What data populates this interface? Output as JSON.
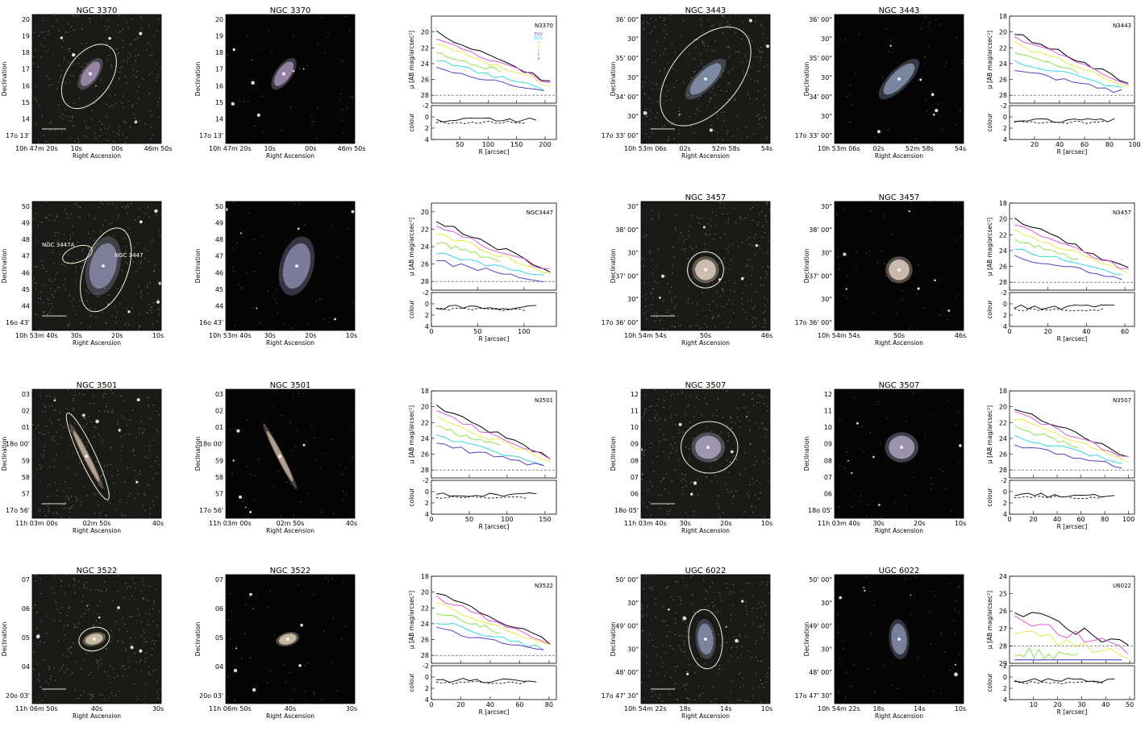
{
  "rows": [
    {
      "galaxies": [
        {
          "name": "NGC 3370",
          "ra_ticks": [
            "10h 47m 20s",
            "10s",
            "00s",
            "46m 50s"
          ],
          "dec_ticks": [
            "20",
            "19",
            "18",
            "17",
            "16",
            "15",
            "14",
            "17o 13'"
          ],
          "ellipse_labels": [],
          "profile": {
            "label": "N3370",
            "legend": [
              "FUV",
              "NUV",
              "u",
              "g",
              "r",
              "i",
              "z"
            ],
            "ylim": [
              18,
              29
            ],
            "yticks": [
              "20",
              "22",
              "24",
              "26",
              "28"
            ],
            "xticks": [
              "50",
              "100",
              "150",
              "200"
            ],
            "xmax": 220,
            "cticks": [
              "-2",
              "0",
              "2",
              "4"
            ]
          }
        },
        {
          "name": "NGC 3443",
          "ra_ticks": [
            "10h 53m 06s",
            "02s",
            "52m 58s",
            "54s"
          ],
          "dec_ticks": [
            "36' 00\"",
            "30\"",
            "35' 00\"",
            "30\"",
            "34' 00\"",
            "30\"",
            "17o 33' 00\""
          ],
          "ellipse_labels": [],
          "profile": {
            "label": "N3443",
            "legend": [],
            "ylim": [
              18,
              29
            ],
            "yticks": [
              "18",
              "20",
              "22",
              "24",
              "26",
              "28"
            ],
            "xticks": [
              "20",
              "40",
              "60",
              "80",
              "100"
            ],
            "xmax": 100,
            "cticks": [
              "-2",
              "0",
              "2",
              "4"
            ]
          }
        }
      ]
    },
    {
      "galaxies": [
        {
          "name": "",
          "ra_ticks": [
            "10h 53m 40s",
            "30s",
            "20s",
            "10s"
          ],
          "dec_ticks": [
            "50",
            "49",
            "48",
            "47",
            "46",
            "45",
            "44",
            "16o 43'"
          ],
          "ellipse_labels": [
            "NGC 3447A",
            "NGC 3447"
          ],
          "profile": {
            "label": "NGC3447",
            "legend": [],
            "ylim": [
              19,
              29
            ],
            "yticks": [
              "20",
              "22",
              "24",
              "26",
              "28"
            ],
            "xticks": [
              "0",
              "50",
              "100"
            ],
            "xmax": 135,
            "cticks": [
              "-2",
              "0",
              "2",
              "4"
            ]
          }
        },
        {
          "name": "NGC 3457",
          "ra_ticks": [
            "10h 54m 54s",
            "50s",
            "46s"
          ],
          "dec_ticks": [
            "30\"",
            "38' 00\"",
            "30\"",
            "37' 00\"",
            "30\"",
            "17o 36' 00\""
          ],
          "ellipse_labels": [],
          "profile": {
            "label": "N3457",
            "legend": [],
            "ylim": [
              18,
              29
            ],
            "yticks": [
              "18",
              "20",
              "22",
              "24",
              "26",
              "28"
            ],
            "xticks": [
              "0",
              "20",
              "40",
              "60"
            ],
            "xmax": 65,
            "cticks": [
              "-2",
              "0",
              "2",
              "4"
            ]
          }
        }
      ]
    },
    {
      "galaxies": [
        {
          "name": "NGC 3501",
          "ra_ticks": [
            "11h 03m 00s",
            "02m 50s",
            "40s"
          ],
          "dec_ticks": [
            "03",
            "02",
            "01",
            "18o 00'",
            "59",
            "58",
            "57",
            "17o 56'"
          ],
          "ellipse_labels": [],
          "profile": {
            "label": "N3501",
            "legend": [],
            "ylim": [
              18,
              29
            ],
            "yticks": [
              "18",
              "20",
              "22",
              "24",
              "26",
              "28"
            ],
            "xticks": [
              "0",
              "50",
              "100",
              "150"
            ],
            "xmax": 165,
            "cticks": [
              "-2",
              "0",
              "2",
              "4"
            ]
          }
        },
        {
          "name": "NGC 3507",
          "ra_ticks": [
            "11h 03m 40s",
            "30s",
            "20s",
            "10s"
          ],
          "dec_ticks": [
            "12",
            "11",
            "10",
            "09",
            "08",
            "07",
            "06",
            "18o 05'"
          ],
          "ellipse_labels": [],
          "profile": {
            "label": "N3507",
            "legend": [],
            "ylim": [
              18,
              29
            ],
            "yticks": [
              "18",
              "20",
              "22",
              "24",
              "26",
              "28"
            ],
            "xticks": [
              "0",
              "20",
              "40",
              "60",
              "80",
              "100"
            ],
            "xmax": 105,
            "cticks": [
              "-2",
              "0",
              "2",
              "4"
            ]
          }
        }
      ]
    },
    {
      "galaxies": [
        {
          "name": "NGC 3522",
          "ra_ticks": [
            "11h 06m 50s",
            "40s",
            "30s"
          ],
          "dec_ticks": [
            "07",
            "06",
            "05",
            "04",
            "20o 03'"
          ],
          "ellipse_labels": [],
          "profile": {
            "label": "N3522",
            "legend": [],
            "ylim": [
              18,
              29
            ],
            "yticks": [
              "18",
              "20",
              "22",
              "24",
              "26",
              "28"
            ],
            "xticks": [
              "0",
              "20",
              "40",
              "60",
              "80"
            ],
            "xmax": 85,
            "cticks": [
              "-2",
              "0",
              "2",
              "4"
            ]
          }
        },
        {
          "name": "UGC 6022",
          "ra_ticks": [
            "10h 54m 22s",
            "18s",
            "14s",
            "10s"
          ],
          "dec_ticks": [
            "50' 00\"",
            "30\"",
            "49' 00\"",
            "30\"",
            "48' 00\"",
            "17o 47' 30\""
          ],
          "ellipse_labels": [],
          "profile": {
            "label": "U6022",
            "legend": [],
            "ylim": [
              24,
              29
            ],
            "yticks": [
              "24",
              "25",
              "26",
              "27",
              "28",
              "29"
            ],
            "xticks": [
              "10",
              "20",
              "30",
              "40",
              "50"
            ],
            "xmax": 52,
            "cticks": [
              "-2",
              "0",
              "2",
              "4"
            ]
          }
        }
      ]
    }
  ],
  "axis_labels": {
    "ra": "Right Ascension",
    "dec": "Declination",
    "mu": "μ [AB mag/arcsec²]",
    "radius": "R [arcsec]",
    "colour": "colour"
  },
  "colors": {
    "FUV": "#5b3ec8",
    "NUV": "#33d8e8",
    "u": "#8fe34a",
    "g": "#e8e84a",
    "r": "#e05ad8",
    "i": "#000000",
    "z": "#555555"
  }
}
